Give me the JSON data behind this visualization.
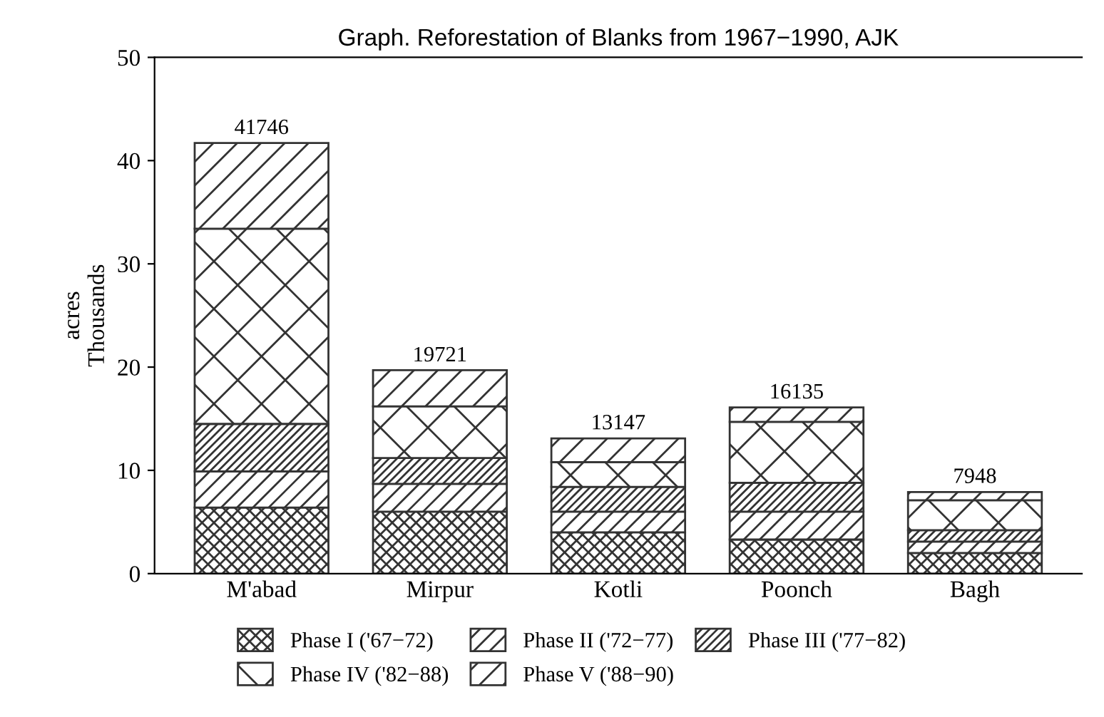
{
  "chart_data": {
    "type": "bar",
    "stacked": true,
    "title": "Graph. Reforestation of Blanks from 1967−1990, AJK",
    "ylabel": "acres\nThousands",
    "categories": [
      "M'abad",
      "Mirpur",
      "Kotli",
      "Poonch",
      "Bagh"
    ],
    "series": [
      {
        "name": "Phase I ('67−72)",
        "color": "#333333",
        "values": [
          6.4,
          6.0,
          4.0,
          3.3,
          2.0
        ]
      },
      {
        "name": "Phase II ('72−77)",
        "color": "#333333",
        "values": [
          3.5,
          2.7,
          2.0,
          2.7,
          1.1
        ]
      },
      {
        "name": "Phase III ('77−82)",
        "color": "#333333",
        "values": [
          4.6,
          2.5,
          2.4,
          2.8,
          1.1
        ]
      },
      {
        "name": "Phase IV ('82−88)",
        "color": "#333333",
        "values": [
          18.9,
          5.0,
          2.4,
          5.9,
          2.9
        ]
      },
      {
        "name": "Phase V ('88−90)",
        "color": "#333333",
        "values": [
          8.3,
          3.5,
          2.3,
          1.4,
          0.8
        ]
      }
    ],
    "annotations": [
      {
        "text": "41746",
        "x": "M'abad",
        "y": 41.746
      },
      {
        "text": "19721",
        "x": "Mirpur",
        "y": 19.721
      },
      {
        "text": "13147",
        "x": "Kotli",
        "y": 13.147
      },
      {
        "text": "16135",
        "x": "Poonch",
        "y": 16.135
      },
      {
        "text": "7948",
        "x": "Bagh",
        "y": 7.948
      }
    ],
    "ylim": [
      0,
      50
    ],
    "yticks": [
      0,
      10,
      20,
      30,
      40,
      50
    ],
    "grid": false,
    "legend": "bottom"
  }
}
